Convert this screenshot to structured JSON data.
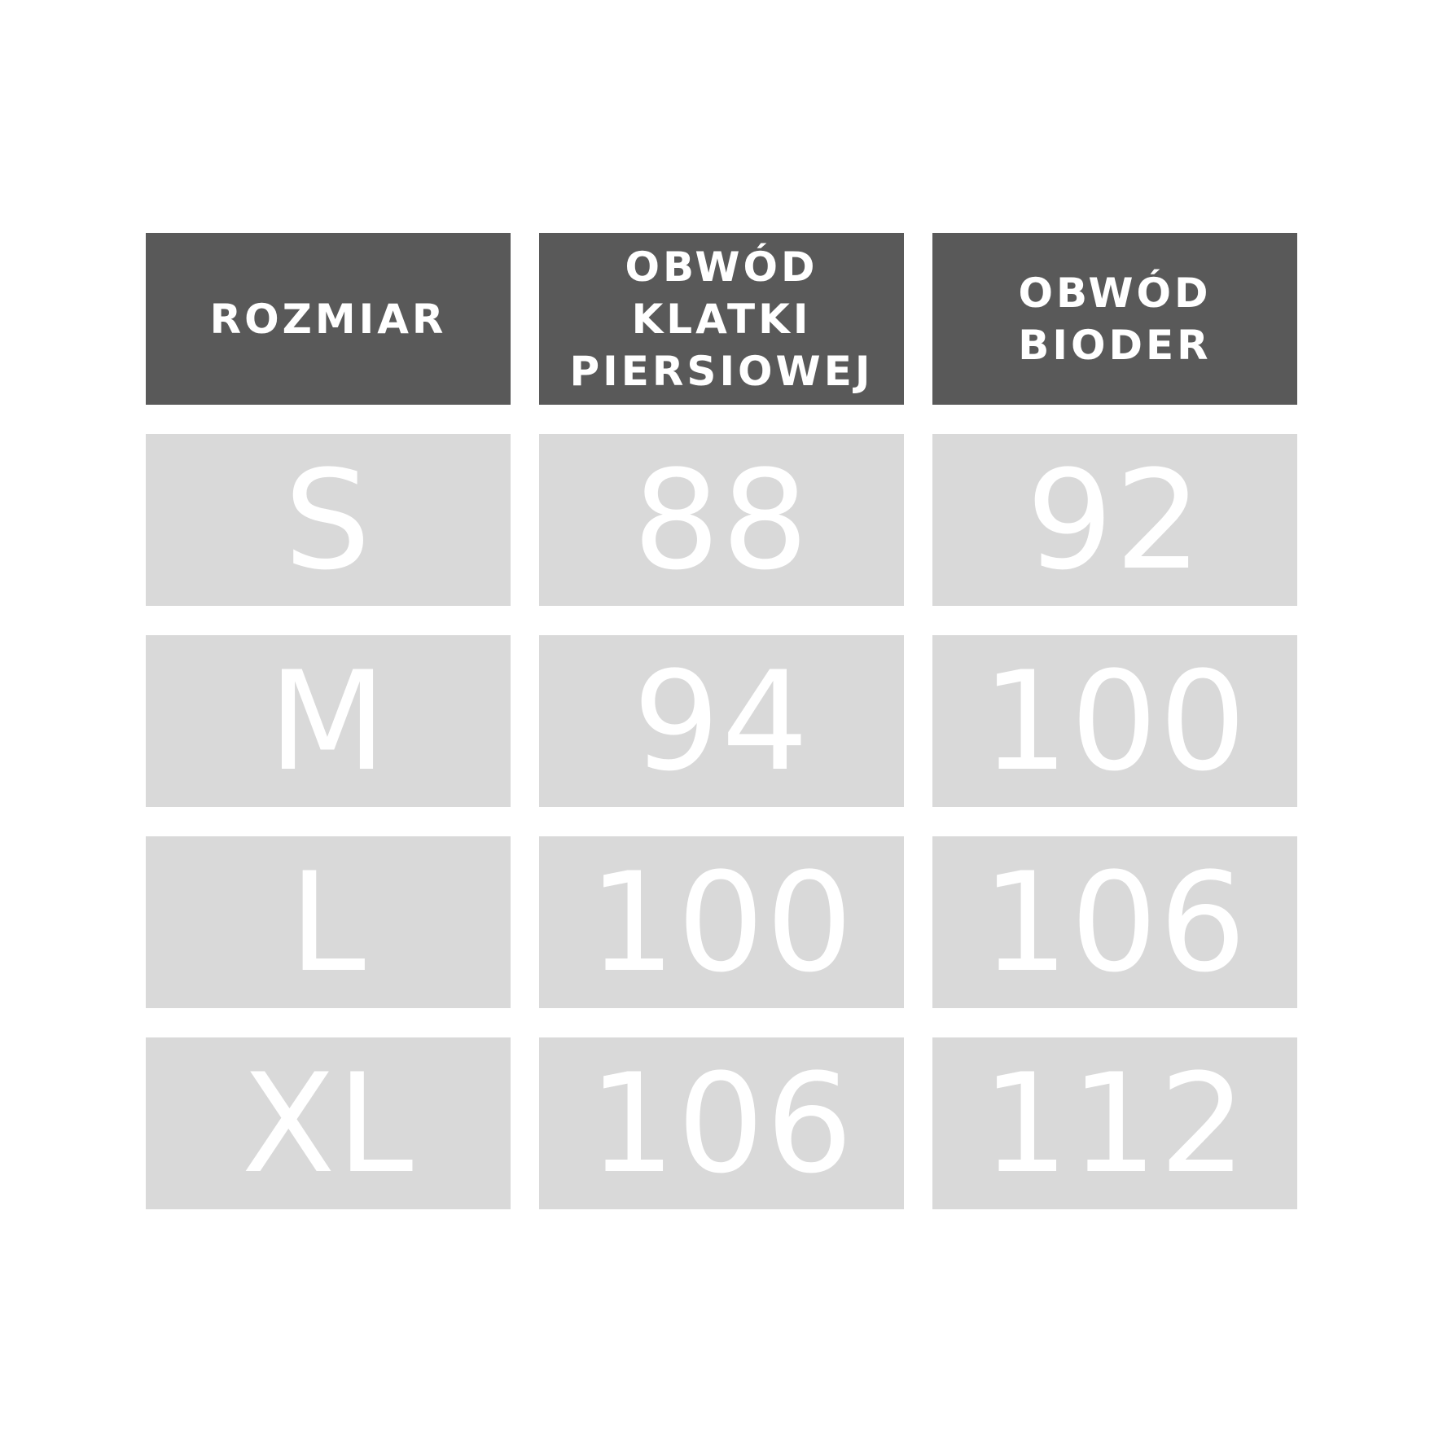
{
  "table": {
    "headers": [
      "ROZMIAR",
      "OBWÓD KLATKI PIERSIOWEJ",
      "OBWÓD BIODER"
    ],
    "rows": [
      [
        "S",
        "88",
        "92"
      ],
      [
        "M",
        "94",
        "100"
      ],
      [
        "L",
        "100",
        "106"
      ],
      [
        "XL",
        "106",
        "112"
      ]
    ]
  },
  "colors": {
    "header_bg": "#595959",
    "cell_bg": "#d9d9d9",
    "text": "#ffffff"
  }
}
